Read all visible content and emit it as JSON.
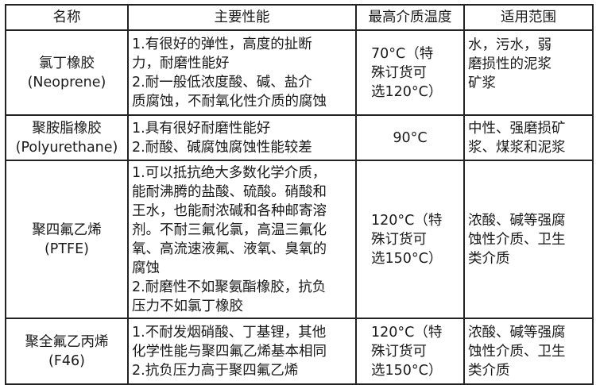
{
  "table": {
    "headers": [
      "名称",
      "主要性能",
      "最高介质温度",
      "适用范围"
    ],
    "rows": [
      {
        "name": "氯丁橡胶\n(Neoprene)",
        "performance": "1.有很好的弹性，高度的扯断\n力，耐磨性能好\n2.耐一般低浓度酸、碱、盐介\n质腐蚀，不耐氧化性介质的腐蚀",
        "max_temp": "70°C（特\n殊订货可\n选120°C）",
        "scope": "水，污水，弱\n磨损性的泥浆\n矿浆"
      },
      {
        "name": "聚胺脂橡胶\n(Polyurethane)",
        "performance": "1.具有很好耐磨性能好\n2.耐酸、碱腐蚀腐蚀性能较差",
        "max_temp": "90°C",
        "scope": "中性、强磨损矿\n浆、煤浆和泥浆"
      },
      {
        "name": "聚四氟乙烯\n(PTFE)",
        "performance": "1.可以抵抗绝大多数化学介质，\n能耐沸腾的盐酸、硫酸。硝酸和\n王水，也能耐浓碱和各种邮寄溶\n剂。不耐三氟化氯，高温三氟化\n氧、高流速液氟、液氧、臭氧的\n腐蚀\n2.耐磨性不如聚氨酯橡胶，抗负\n压力不如氯丁橡胶",
        "max_temp": "120°C（特\n殊订货可\n选150°C）",
        "scope": "浓酸、碱等强腐\n蚀性介质、卫生\n类介质"
      },
      {
        "name": "聚全氟乙丙烯\n(F46)",
        "performance": "1.不耐发烟硝酸、丁基锂，其他\n化学性能与聚四氟乙烯基本相同\n2.抗负压力高于聚四氟乙烯",
        "max_temp": "120°C（特\n殊订货可\n选150°C）",
        "scope": "浓酸、碱等强腐\n蚀性介质、卫生\n类介质"
      }
    ]
  }
}
